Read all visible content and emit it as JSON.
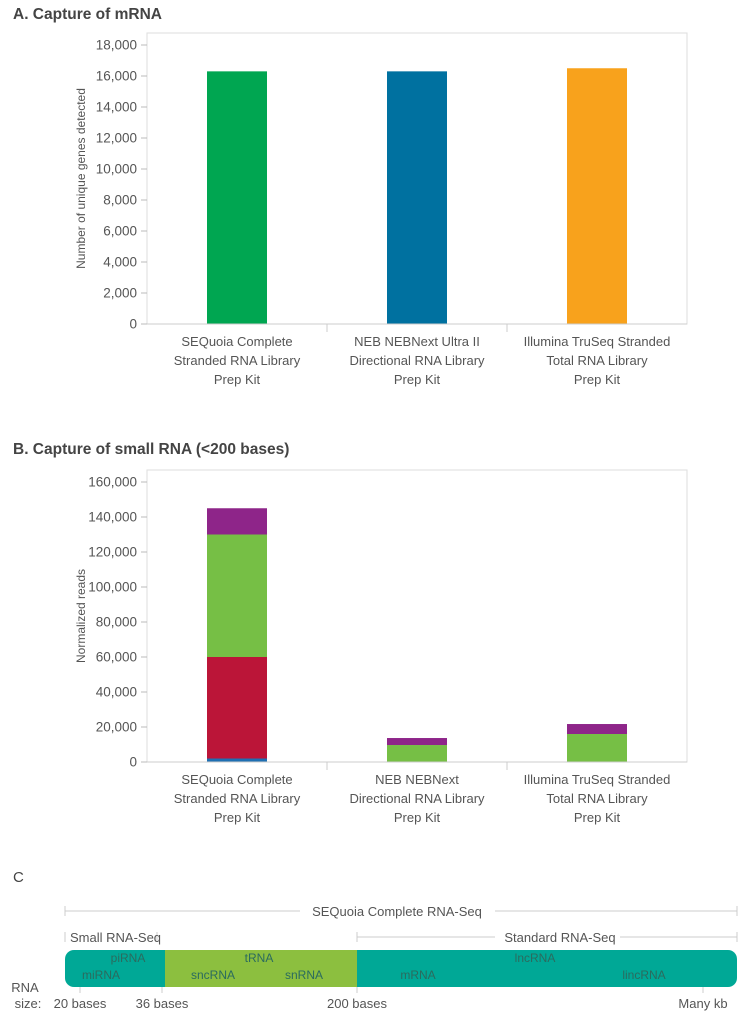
{
  "chart_data": [
    {
      "type": "bar",
      "title": "A. Capture of mRNA",
      "xlabel": "",
      "ylabel": "Number of unique genes detected",
      "ylim": [
        0,
        18000
      ],
      "yticks": [
        "0",
        "2,000",
        "4,000",
        "6,000",
        "8,000",
        "10,000",
        "12,000",
        "14,000",
        "16,000",
        "18,000"
      ],
      "categories": [
        [
          "SEQuoia Complete",
          "Stranded RNA Library",
          "Prep Kit"
        ],
        [
          "NEB NEBNext Ultra II",
          "Directional RNA Library",
          "Prep Kit"
        ],
        [
          "Illumina TruSeq Stranded",
          "Total RNA Library",
          "Prep Kit"
        ]
      ],
      "values": [
        16300,
        16300,
        16500
      ],
      "colors": [
        "#00a651",
        "#0071a0",
        "#f8a21c"
      ]
    },
    {
      "type": "bar",
      "stacked": true,
      "title": "B. Capture of small RNA (<200 bases)",
      "xlabel": "",
      "ylabel": "Normalized reads",
      "ylim": [
        0,
        160000
      ],
      "yticks": [
        "0",
        "20,000",
        "40,000",
        "60,000",
        "80,000",
        "100,000",
        "120,000",
        "140,000",
        "160,000"
      ],
      "categories": [
        [
          "SEQuoia Complete",
          "Stranded RNA Library",
          "Prep Kit"
        ],
        [
          "NEB NEBNext",
          "Directional RNA Library",
          "Prep Kit"
        ],
        [
          "Illumina TruSeq Stranded",
          "Total RNA Library",
          "Prep Kit"
        ]
      ],
      "series": [
        {
          "color": "#1f6fb2",
          "values": [
            2000,
            0,
            0
          ]
        },
        {
          "color": "#bb1538",
          "values": [
            58000,
            0,
            0
          ]
        },
        {
          "color": "#76bf45",
          "values": [
            70000,
            9700,
            16000
          ]
        },
        {
          "color": "#8e2589",
          "values": [
            15000,
            4000,
            5700
          ]
        }
      ]
    }
  ],
  "panel_c": {
    "title": "C",
    "overall_label": "SEQuoia Complete RNA-Seq",
    "small_label": "Small RNA-Seq",
    "standard_label": "Standard RNA-Seq",
    "axis_label_line1": "RNA",
    "axis_label_line2": "size:",
    "sizes": [
      "20 bases",
      "36 bases",
      "200 bases",
      "Many kb"
    ],
    "segments": [
      {
        "color": "#00a896",
        "labels": [
          "piRNA",
          "miRNA"
        ]
      },
      {
        "color": "#8cbf3f",
        "labels": [
          "tRNA",
          "sncRNA",
          "snRNA"
        ]
      },
      {
        "color": "#00a896",
        "labels": [
          "lncRNA",
          "mRNA",
          "lincRNA"
        ]
      }
    ]
  }
}
